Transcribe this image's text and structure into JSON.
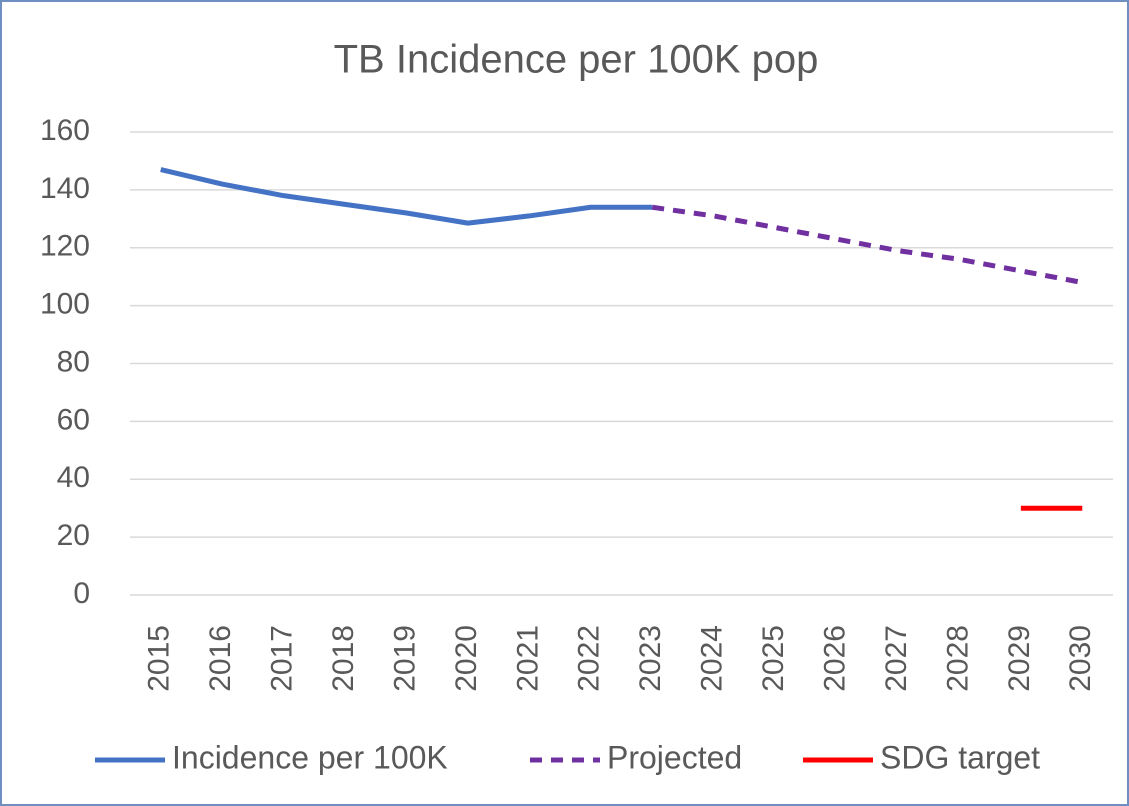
{
  "chart_data": {
    "type": "line",
    "title": "TB Incidence per 100K pop",
    "categories": [
      "2015",
      "2016",
      "2017",
      "2018",
      "2019",
      "2020",
      "2021",
      "2022",
      "2023",
      "2024",
      "2025",
      "2026",
      "2027",
      "2028",
      "2029",
      "2030"
    ],
    "series": [
      {
        "name": "Incidence per 100K",
        "color": "#4472c4",
        "dashed": false,
        "values": [
          147,
          142,
          138,
          135,
          132,
          128.5,
          131,
          134,
          134,
          null,
          null,
          null,
          null,
          null,
          null,
          null
        ]
      },
      {
        "name": "Projected",
        "color": "#7030a0",
        "dashed": true,
        "values": [
          null,
          null,
          null,
          null,
          null,
          null,
          null,
          null,
          134,
          131,
          127,
          123,
          119,
          116,
          112,
          108
        ]
      },
      {
        "name": "SDG target",
        "color": "#ff0000",
        "dashed": false,
        "values": [
          null,
          null,
          null,
          null,
          null,
          null,
          null,
          null,
          null,
          null,
          null,
          null,
          null,
          null,
          30,
          30
        ]
      }
    ],
    "ylim": [
      0,
      160
    ],
    "yticks": [
      0,
      20,
      40,
      60,
      80,
      100,
      120,
      140,
      160
    ],
    "grid": true,
    "legend": "bottom"
  }
}
